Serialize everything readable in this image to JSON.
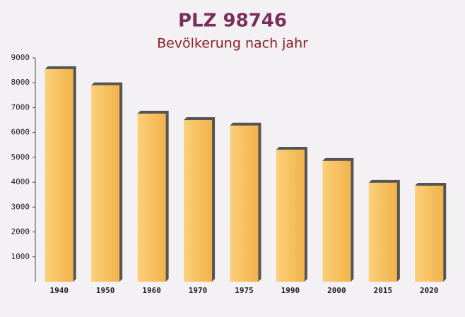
{
  "chart_data": {
    "type": "bar",
    "title": "PLZ 98746",
    "subtitle": "Bevölkerung nach jahr",
    "categories": [
      "1940",
      "1950",
      "1960",
      "1970",
      "1975",
      "1990",
      "2000",
      "2015",
      "2020"
    ],
    "values": [
      8550,
      7900,
      6760,
      6500,
      6280,
      5310,
      4860,
      3980,
      3860
    ],
    "color": "#f7bc56",
    "ylim": [
      0,
      9000
    ],
    "yticks": [
      1000,
      2000,
      3000,
      4000,
      5000,
      6000,
      7000,
      8000,
      9000
    ]
  }
}
